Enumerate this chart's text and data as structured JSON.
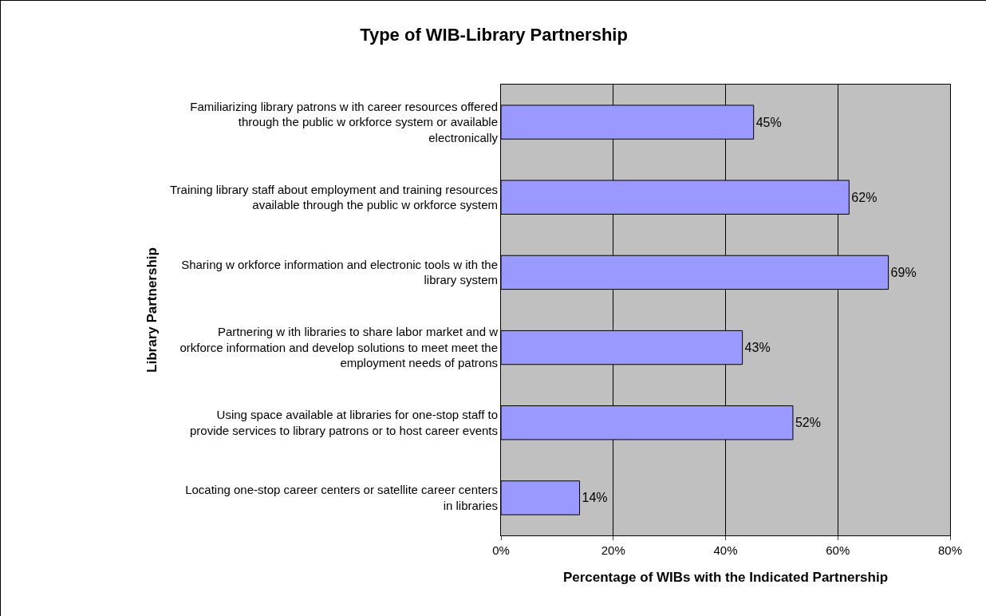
{
  "chart_data": {
    "type": "bar",
    "orientation": "horizontal",
    "title": "Type of WIB-Library Partnership",
    "xlabel": "Percentage of WIBs with the Indicated Partnership",
    "ylabel": "Library Partnership",
    "categories": [
      "Familiarizing library patrons w ith career resources offered through the public w orkforce system or available electronically",
      "Training library staff about employment and training resources available through the public w orkforce system",
      "Sharing w orkforce information and electronic tools w ith the library system",
      "Partnering w ith libraries to share labor market and w orkforce information and develop solutions to meet meet the employment needs of patrons",
      "Using space available at libraries for one-stop staff to provide services to library patrons or to host career events",
      "Locating one-stop career centers or satellite career centers in libraries"
    ],
    "values": [
      45,
      62,
      69,
      43,
      52,
      14
    ],
    "value_labels": [
      "45%",
      "62%",
      "69%",
      "43%",
      "52%",
      "14%"
    ],
    "color": "#9999ff",
    "xlim": [
      0,
      80
    ],
    "xticks": [
      {
        "value": 0,
        "label": "0%"
      },
      {
        "value": 20,
        "label": "20%"
      },
      {
        "value": 40,
        "label": "40%"
      },
      {
        "value": 60,
        "label": "60%"
      },
      {
        "value": 80,
        "label": "80%"
      }
    ],
    "grid": "x",
    "legend": false
  }
}
